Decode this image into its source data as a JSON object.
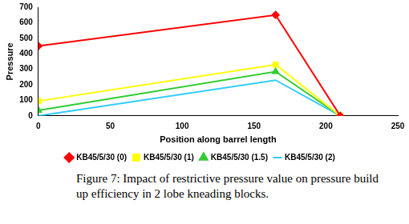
{
  "chart_data": {
    "type": "line",
    "caption": "Figure 7: Impact of restrictive pressure value on pressure build up efficiency in 2 lobe kneading blocks.",
    "x_label": "Position along barrel length",
    "y_label": "Pressure",
    "x": [
      0,
      165,
      210
    ],
    "series": [
      {
        "name": "KB45/5/30 (0)",
        "color": "#ff0000",
        "marker": "diamond",
        "values": [
          450,
          650,
          0
        ]
      },
      {
        "name": "KB45/5/30 (1)",
        "color": "#ffff00",
        "marker": "square",
        "values": [
          95,
          330,
          0
        ]
      },
      {
        "name": "KB45/5/30 (1.5)",
        "color": "#33cc33",
        "marker": "triangle",
        "values": [
          35,
          285,
          0
        ]
      },
      {
        "name": "KB45/5/30 (2)",
        "color": "#33ccff",
        "marker": "none",
        "values": [
          0,
          230,
          0
        ]
      }
    ],
    "xlim": [
      0,
      250
    ],
    "xticks": [
      0,
      50,
      100,
      150,
      200,
      250
    ],
    "ylim": [
      0,
      700
    ],
    "yticks": [
      0,
      100,
      200,
      300,
      400,
      500,
      600,
      700
    ],
    "grid": false,
    "legend": "bottom"
  }
}
